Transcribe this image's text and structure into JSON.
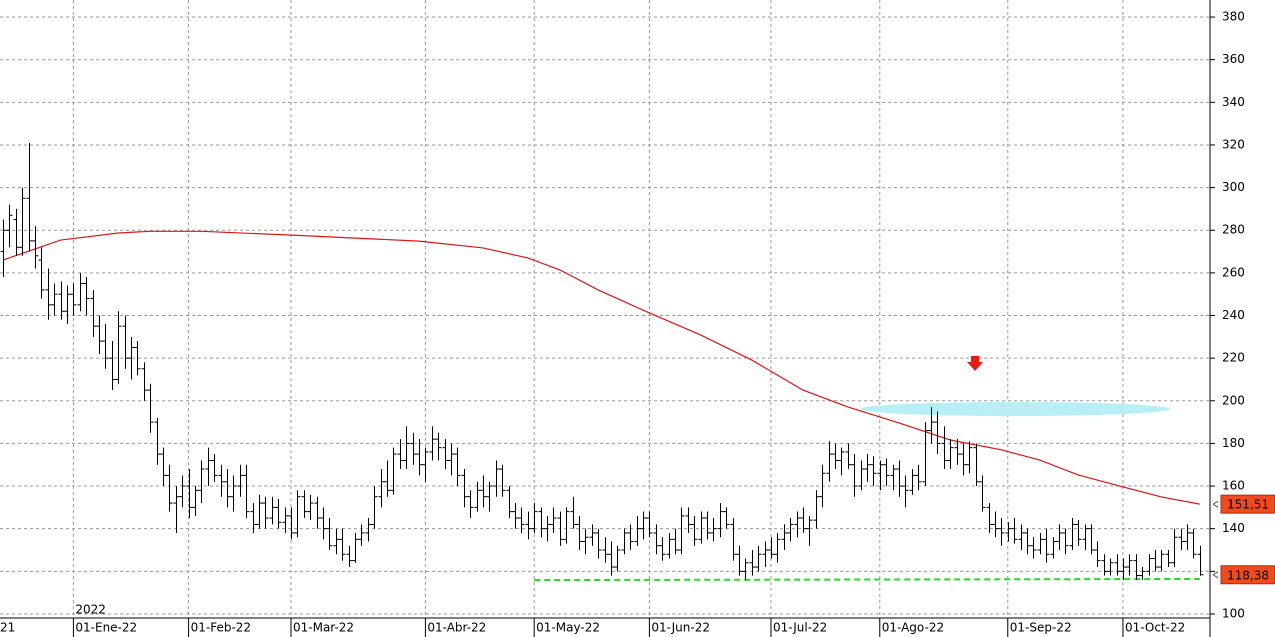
{
  "chart_data": {
    "type": "ohlc",
    "xlim": [
      -0.47,
      188.6
    ],
    "xticks": [
      {
        "value": 11,
        "label": "01-Ene-22"
      },
      {
        "value": 29,
        "label": "01-Feb-22"
      },
      {
        "value": 45,
        "label": "01-Mar-22"
      },
      {
        "value": 66,
        "label": "01-Abr-22"
      },
      {
        "value": 83,
        "label": "01-May-22"
      },
      {
        "value": 101,
        "label": "01-Jun-22"
      },
      {
        "value": 120,
        "label": "01-Jul-22"
      },
      {
        "value": 137,
        "label": "01-Ago-22"
      },
      {
        "value": 157,
        "label": "01-Sep-22"
      },
      {
        "value": 175,
        "label": "01-Oct-22"
      }
    ],
    "edge_label": "21",
    "year_label": "2022",
    "ylim": [
      98.1,
      388
    ],
    "yticks": [
      100,
      120,
      140,
      160,
      180,
      200,
      220,
      240,
      260,
      280,
      300,
      320,
      340,
      360,
      380
    ],
    "grid": true,
    "ohlc": {
      "color": "#000000",
      "x": [
        0,
        1,
        2,
        3,
        4,
        5,
        6,
        7,
        8,
        9,
        10,
        11,
        12,
        13,
        14,
        15,
        16,
        17,
        18,
        19,
        20,
        21,
        22,
        23,
        24,
        25,
        26,
        27,
        28,
        29,
        30,
        31,
        32,
        33,
        34,
        35,
        36,
        37,
        38,
        39,
        40,
        41,
        42,
        43,
        44,
        45,
        46,
        47,
        48,
        49,
        50,
        51,
        52,
        53,
        54,
        55,
        56,
        57,
        58,
        59,
        60,
        61,
        62,
        63,
        64,
        65,
        66,
        67,
        68,
        69,
        70,
        71,
        72,
        73,
        74,
        75,
        76,
        77,
        78,
        79,
        80,
        81,
        82,
        83,
        84,
        85,
        86,
        87,
        88,
        89,
        90,
        91,
        92,
        93,
        94,
        95,
        96,
        97,
        98,
        99,
        100,
        101,
        102,
        103,
        104,
        105,
        106,
        107,
        108,
        109,
        110,
        111,
        112,
        113,
        114,
        115,
        116,
        117,
        118,
        119,
        120,
        121,
        122,
        123,
        124,
        125,
        126,
        127,
        128,
        129,
        130,
        131,
        132,
        133,
        134,
        135,
        136,
        137,
        138,
        139,
        140,
        141,
        142,
        143,
        144,
        145,
        146,
        147,
        148,
        149,
        150,
        151,
        152,
        153,
        154,
        155,
        156,
        157,
        158,
        159,
        160,
        161,
        162,
        163,
        164,
        165,
        166,
        167,
        168,
        169,
        170,
        171,
        172,
        173,
        174,
        175,
        176,
        177,
        178,
        179,
        180,
        181,
        182,
        183,
        184,
        185,
        186,
        187
      ],
      "bars": [
        [
          270,
          285,
          258,
          280
        ],
        [
          280,
          292,
          272,
          287
        ],
        [
          285,
          290,
          268,
          272
        ],
        [
          272,
          300,
          268,
          295
        ],
        [
          295,
          321,
          270,
          275
        ],
        [
          275,
          282,
          262,
          268
        ],
        [
          266,
          272,
          248,
          252
        ],
        [
          252,
          262,
          238,
          245
        ],
        [
          245,
          255,
          240,
          250
        ],
        [
          250,
          256,
          238,
          242
        ],
        [
          242,
          254,
          236,
          250
        ],
        [
          250,
          255,
          240,
          245
        ],
        [
          245,
          260,
          242,
          255
        ],
        [
          255,
          258,
          240,
          248
        ],
        [
          248,
          252,
          230,
          235
        ],
        [
          235,
          240,
          222,
          228
        ],
        [
          228,
          236,
          215,
          220
        ],
        [
          220,
          228,
          205,
          210
        ],
        [
          210,
          242,
          208,
          235
        ],
        [
          235,
          240,
          215,
          220
        ],
        [
          220,
          230,
          210,
          225
        ],
        [
          225,
          228,
          212,
          215
        ],
        [
          215,
          218,
          200,
          205
        ],
        [
          205,
          208,
          185,
          190
        ],
        [
          190,
          192,
          170,
          175
        ],
        [
          175,
          178,
          160,
          165
        ],
        [
          165,
          170,
          148,
          152
        ],
        [
          152,
          160,
          138,
          155
        ],
        [
          155,
          165,
          150,
          160
        ],
        [
          160,
          168,
          145,
          150
        ],
        [
          150,
          160,
          146,
          158
        ],
        [
          158,
          172,
          152,
          168
        ],
        [
          168,
          178,
          160,
          172
        ],
        [
          172,
          175,
          162,
          165
        ],
        [
          165,
          170,
          155,
          162
        ],
        [
          162,
          168,
          150,
          155
        ],
        [
          155,
          165,
          148,
          160
        ],
        [
          160,
          170,
          155,
          165
        ],
        [
          165,
          170,
          145,
          148
        ],
        [
          148,
          152,
          138,
          142
        ],
        [
          142,
          156,
          140,
          152
        ],
        [
          152,
          155,
          140,
          145
        ],
        [
          145,
          155,
          142,
          150
        ],
        [
          150,
          154,
          140,
          143
        ],
        [
          143,
          150,
          138,
          146
        ],
        [
          146,
          150,
          135,
          138
        ],
        [
          138,
          158,
          136,
          155
        ],
        [
          155,
          158,
          145,
          148
        ],
        [
          148,
          156,
          144,
          152
        ],
        [
          152,
          155,
          140,
          145
        ],
        [
          145,
          150,
          135,
          140
        ],
        [
          140,
          145,
          130,
          132
        ],
        [
          132,
          140,
          128,
          135
        ],
        [
          135,
          140,
          125,
          128
        ],
        [
          128,
          132,
          122,
          125
        ],
        [
          125,
          138,
          124,
          135
        ],
        [
          135,
          142,
          132,
          138
        ],
        [
          138,
          145,
          134,
          142
        ],
        [
          142,
          160,
          140,
          155
        ],
        [
          155,
          168,
          150,
          162
        ],
        [
          162,
          172,
          155,
          158
        ],
        [
          158,
          178,
          156,
          175
        ],
        [
          175,
          182,
          168,
          172
        ],
        [
          172,
          188,
          168,
          180
        ],
        [
          180,
          185,
          170,
          175
        ],
        [
          175,
          182,
          165,
          170
        ],
        [
          170,
          178,
          162,
          176
        ],
        [
          176,
          188,
          172,
          182
        ],
        [
          182,
          185,
          172,
          178
        ],
        [
          178,
          182,
          168,
          172
        ],
        [
          172,
          180,
          165,
          175
        ],
        [
          175,
          178,
          160,
          165
        ],
        [
          165,
          168,
          150,
          155
        ],
        [
          155,
          158,
          145,
          150
        ],
        [
          150,
          162,
          148,
          158
        ],
        [
          158,
          165,
          150,
          155
        ],
        [
          155,
          162,
          148,
          160
        ],
        [
          160,
          172,
          155,
          168
        ],
        [
          168,
          170,
          155,
          158
        ],
        [
          158,
          160,
          145,
          148
        ],
        [
          148,
          152,
          140,
          145
        ],
        [
          145,
          150,
          138,
          142
        ],
        [
          142,
          148,
          135,
          140
        ],
        [
          140,
          152,
          138,
          148
        ],
        [
          148,
          150,
          136,
          140
        ],
        [
          140,
          146,
          134,
          142
        ],
        [
          142,
          150,
          138,
          145
        ],
        [
          145,
          148,
          132,
          135
        ],
        [
          135,
          150,
          133,
          148
        ],
        [
          148,
          155,
          140,
          142
        ],
        [
          142,
          146,
          130,
          134
        ],
        [
          134,
          140,
          128,
          136
        ],
        [
          136,
          142,
          132,
          138
        ],
        [
          138,
          140,
          126,
          130
        ],
        [
          130,
          136,
          124,
          128
        ],
        [
          128,
          134,
          118,
          122
        ],
        [
          122,
          132,
          120,
          130
        ],
        [
          130,
          140,
          128,
          138
        ],
        [
          138,
          142,
          130,
          134
        ],
        [
          134,
          146,
          132,
          140
        ],
        [
          140,
          148,
          135,
          145
        ],
        [
          145,
          148,
          136,
          138
        ],
        [
          138,
          142,
          128,
          132
        ],
        [
          132,
          136,
          125,
          128
        ],
        [
          128,
          138,
          126,
          135
        ],
        [
          135,
          140,
          128,
          130
        ],
        [
          130,
          150,
          128,
          146
        ],
        [
          146,
          150,
          138,
          142
        ],
        [
          142,
          146,
          132,
          135
        ],
        [
          135,
          148,
          133,
          145
        ],
        [
          145,
          148,
          135,
          138
        ],
        [
          138,
          145,
          134,
          140
        ],
        [
          140,
          152,
          136,
          148
        ],
        [
          148,
          150,
          140,
          142
        ],
        [
          142,
          145,
          125,
          128
        ],
        [
          128,
          132,
          118,
          120
        ],
        [
          120,
          126,
          116,
          124
        ],
        [
          124,
          130,
          118,
          122
        ],
        [
          122,
          132,
          120,
          128
        ],
        [
          128,
          134,
          122,
          130
        ],
        [
          130,
          136,
          126,
          128
        ],
        [
          128,
          138,
          124,
          135
        ],
        [
          135,
          142,
          130,
          138
        ],
        [
          138,
          145,
          134,
          142
        ],
        [
          142,
          148,
          136,
          145
        ],
        [
          145,
          150,
          138,
          140
        ],
        [
          140,
          146,
          132,
          144
        ],
        [
          144,
          158,
          140,
          155
        ],
        [
          155,
          170,
          150,
          166
        ],
        [
          166,
          181,
          162,
          175
        ],
        [
          175,
          180,
          168,
          172
        ],
        [
          172,
          178,
          165,
          176
        ],
        [
          176,
          180,
          168,
          170
        ],
        [
          170,
          175,
          155,
          160
        ],
        [
          160,
          172,
          158,
          168
        ],
        [
          168,
          175,
          162,
          170
        ],
        [
          170,
          174,
          160,
          166
        ],
        [
          166,
          172,
          158,
          170
        ],
        [
          170,
          173,
          160,
          165
        ],
        [
          165,
          170,
          158,
          168
        ],
        [
          168,
          172,
          155,
          160
        ],
        [
          160,
          165,
          150,
          158
        ],
        [
          158,
          168,
          156,
          165
        ],
        [
          165,
          170,
          158,
          162
        ],
        [
          162,
          190,
          160,
          186
        ],
        [
          186,
          197,
          180,
          190
        ],
        [
          190,
          195,
          175,
          180
        ],
        [
          180,
          188,
          168,
          172
        ],
        [
          172,
          182,
          168,
          178
        ],
        [
          178,
          182,
          170,
          175
        ],
        [
          175,
          180,
          165,
          170
        ],
        [
          170,
          181,
          166,
          178
        ],
        [
          178,
          180,
          160,
          162
        ],
        [
          162,
          165,
          148,
          150
        ],
        [
          150,
          152,
          138,
          142
        ],
        [
          142,
          148,
          136,
          140
        ],
        [
          140,
          145,
          132,
          138
        ],
        [
          138,
          143,
          134,
          140
        ],
        [
          140,
          145,
          133,
          135
        ],
        [
          135,
          142,
          130,
          138
        ],
        [
          138,
          140,
          128,
          132
        ],
        [
          132,
          136,
          126,
          130
        ],
        [
          130,
          138,
          128,
          135
        ],
        [
          135,
          140,
          124,
          128
        ],
        [
          128,
          136,
          126,
          134
        ],
        [
          134,
          142,
          130,
          138
        ],
        [
          138,
          140,
          128,
          132
        ],
        [
          132,
          145,
          130,
          142
        ],
        [
          142,
          144,
          132,
          135
        ],
        [
          135,
          142,
          130,
          140
        ],
        [
          140,
          142,
          128,
          130
        ],
        [
          130,
          134,
          122,
          125
        ],
        [
          125,
          128,
          118,
          120
        ],
        [
          120,
          126,
          118,
          124
        ],
        [
          124,
          128,
          118,
          120
        ],
        [
          120,
          126,
          116,
          122
        ],
        [
          122,
          128,
          118,
          125
        ],
        [
          125,
          128,
          116,
          118
        ],
        [
          118,
          122,
          116,
          120
        ],
        [
          120,
          128,
          118,
          126
        ],
        [
          126,
          130,
          120,
          122
        ],
        [
          122,
          130,
          120,
          128
        ],
        [
          128,
          130,
          122,
          124
        ],
        [
          124,
          140,
          122,
          136
        ],
        [
          136,
          140,
          130,
          134
        ],
        [
          134,
          142,
          130,
          138
        ],
        [
          138,
          140,
          126,
          128
        ],
        [
          128,
          132,
          118,
          118.38
        ]
      ],
      "last_close_label": "118,38"
    },
    "ma": {
      "color": "#d81818",
      "x": [
        0,
        9,
        18,
        23,
        31,
        46,
        65,
        75,
        82,
        87,
        93,
        101,
        109,
        117,
        125,
        132,
        140,
        148,
        156,
        162,
        168,
        175,
        181,
        187
      ],
      "values": [
        266,
        275.4,
        278.7,
        279.5,
        279.5,
        277.6,
        274.9,
        271.7,
        267,
        261.4,
        252,
        241.2,
        230.9,
        219.1,
        205,
        197.1,
        189.6,
        181.6,
        177,
        172.2,
        165.2,
        159.6,
        154.9,
        151.51
      ],
      "value_labels": [
        null,
        null,
        null,
        null,
        null,
        null,
        null,
        null,
        null,
        null,
        null,
        null,
        null,
        null,
        null,
        null,
        null,
        null,
        null,
        null,
        null,
        null,
        null,
        "151,51"
      ]
    },
    "support": {
      "color": "#22dd22",
      "x": [
        83,
        187
      ],
      "values": [
        115.9,
        116.4
      ]
    }
  }
}
